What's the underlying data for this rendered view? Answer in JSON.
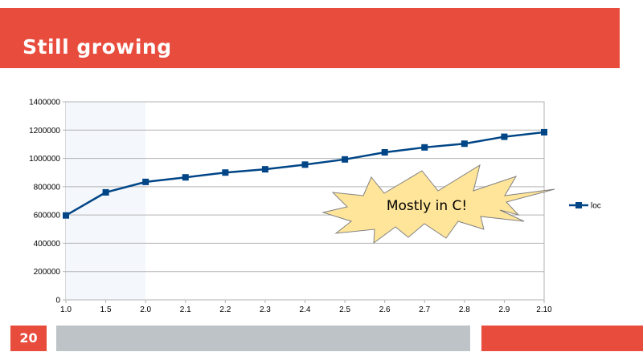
{
  "slide": {
    "title": "Still growing",
    "page_number": "20"
  },
  "colors": {
    "accent": "#e84c3d",
    "footer_gray": "#bdc3c7",
    "series": "#004586",
    "callout_fill": "#ffe59a"
  },
  "chart_data": {
    "type": "line",
    "title": "",
    "xlabel": "",
    "ylabel": "",
    "categories": [
      "1.0",
      "1.5",
      "2.0",
      "2.1",
      "2.2",
      "2.3",
      "2.4",
      "2.5",
      "2.6",
      "2.7",
      "2.8",
      "2.9",
      "2.10"
    ],
    "series": [
      {
        "name": "loc",
        "values": [
          597000,
          760000,
          834000,
          866000,
          900000,
          923000,
          956000,
          993000,
          1043000,
          1078000,
          1104000,
          1153000,
          1185000
        ]
      }
    ],
    "ylim": [
      0,
      1400000
    ],
    "yticks": [
      "0",
      "200000",
      "400000",
      "600000",
      "800000",
      "1000000",
      "1200000",
      "1400000"
    ],
    "grid": true,
    "legend": "right",
    "highlight_band": [
      "1.0",
      "2.0"
    ],
    "annotation": "Mostly in C!"
  }
}
